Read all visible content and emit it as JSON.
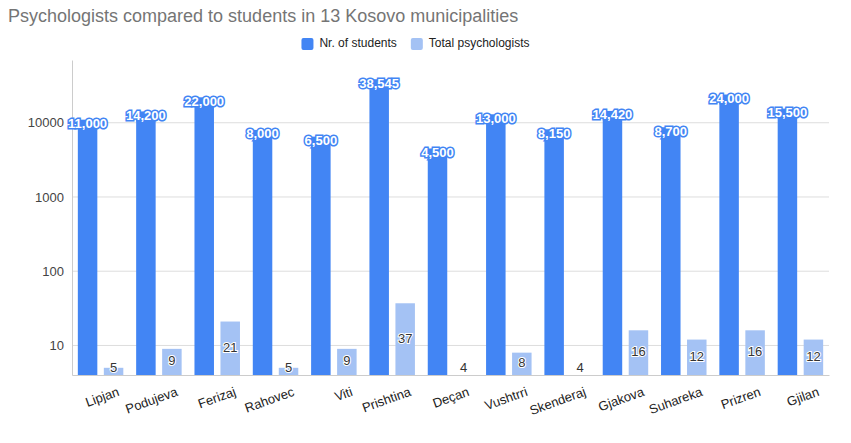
{
  "chart_data": {
    "type": "bar",
    "title": "Psychologists compared to students in 13 Kosovo municipalities",
    "categories": [
      "Lipjan",
      "Podujeva",
      "Ferizaj",
      "Rahovec",
      "Viti",
      "Prishtina",
      "Deçan",
      "Vushtrri",
      "Skenderaj",
      "Gjakova",
      "Suhareka",
      "Prizren",
      "Gjilan"
    ],
    "series": [
      {
        "name": "Nr. of students",
        "color": "#4285f4",
        "values": [
          11000,
          14200,
          22000,
          8000,
          6500,
          38545,
          4500,
          13000,
          8150,
          14420,
          8700,
          24000,
          15500
        ],
        "value_labels": [
          "11,000",
          "14,200",
          "22,000",
          "8,000",
          "6,500",
          "38,545",
          "4,500",
          "13,000",
          "8,150",
          "14,420",
          "8,700",
          "24,000",
          "15,500"
        ]
      },
      {
        "name": "Total psychologists",
        "color": "#a4c2f4",
        "values": [
          5,
          9,
          21,
          5,
          9,
          37,
          4,
          8,
          4,
          16,
          12,
          16,
          12
        ]
      }
    ],
    "ylim": [
      4,
      70000
    ],
    "yticks": [
      10,
      100,
      1000,
      10000
    ],
    "log": "y",
    "grid": true,
    "legend": "top",
    "data_labels": true
  }
}
